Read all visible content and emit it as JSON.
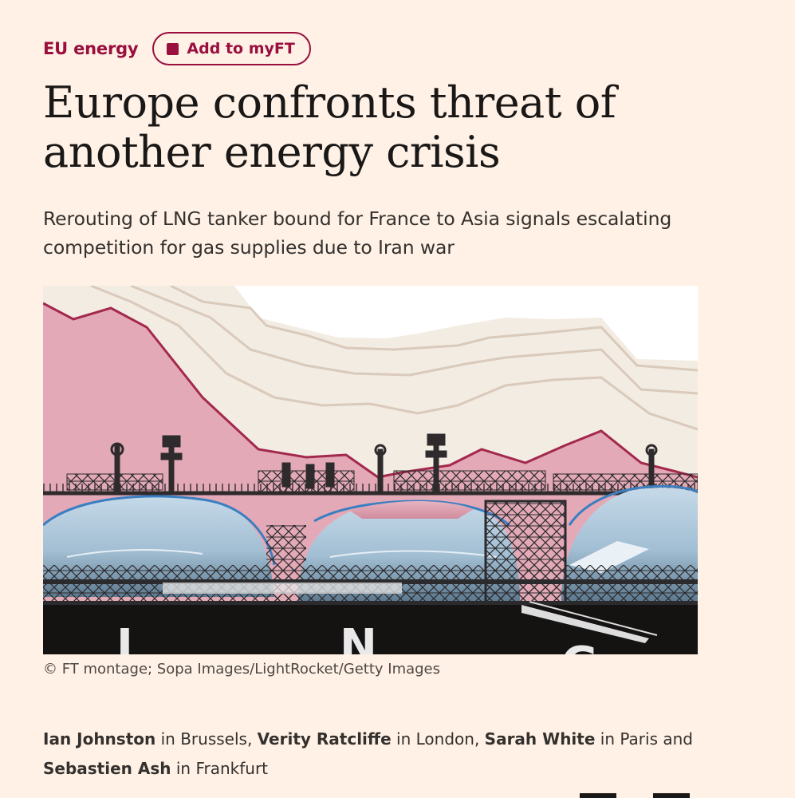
{
  "topic": {
    "label": "EU energy",
    "myft_button_label": "Add to myFT"
  },
  "article": {
    "headline": "Europe confronts threat of another energy crisis",
    "standfirst": "Rerouting of LNG tanker bound for France to Asia signals escalating competition for gas supplies due to Iran war"
  },
  "image": {
    "caption": "© FT montage; Sopa Images/LightRocket/Getty Images",
    "hull_letters": [
      "L",
      "N",
      "G"
    ],
    "colors": {
      "pink_area": "#e0a6b4",
      "pink_line": "#a3284d",
      "beige_area": "#efe7dc",
      "beige_line": "#d8c9ba",
      "blue_tint": "#a9c6dc",
      "blue_line": "#3a7fc1",
      "hull": "#151212"
    }
  },
  "byline": {
    "authors": [
      {
        "name": "Ian Johnston",
        "location_text": " in Brussels, "
      },
      {
        "name": "Verity Ratcliffe",
        "location_text": " in London, "
      },
      {
        "name": "Sarah White",
        "location_text": " in Paris and "
      },
      {
        "name": "Sebastien Ash",
        "location_text": " in Frankfurt"
      }
    ]
  }
}
